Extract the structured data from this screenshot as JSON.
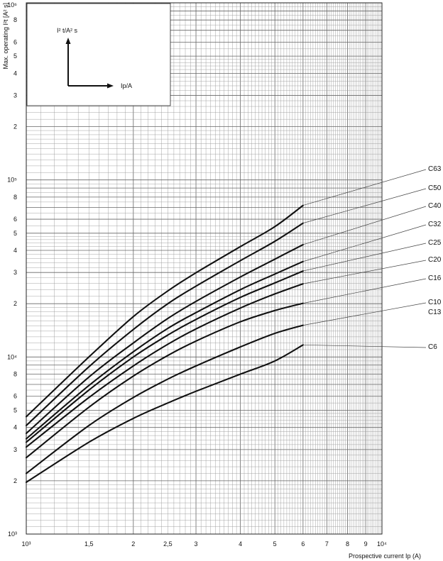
{
  "chart_data": {
    "type": "line",
    "title": "",
    "xlabel": "Prospective current Ip (A)",
    "ylabel": "Max. operating I²t [A² s]",
    "xscale": "log",
    "yscale": "log",
    "xlim": [
      1000,
      10000
    ],
    "ylim": [
      1000,
      1000000
    ],
    "grid": true,
    "x_tick_labels": [
      {
        "v": 1000,
        "t": "10³"
      },
      {
        "v": 1500,
        "t": "1,5"
      },
      {
        "v": 2000,
        "t": "2"
      },
      {
        "v": 2500,
        "t": "2,5"
      },
      {
        "v": 3000,
        "t": "3"
      },
      {
        "v": 4000,
        "t": "4"
      },
      {
        "v": 5000,
        "t": "5"
      },
      {
        "v": 6000,
        "t": "6"
      },
      {
        "v": 7000,
        "t": "7"
      },
      {
        "v": 8000,
        "t": "8"
      },
      {
        "v": 9000,
        "t": "9"
      },
      {
        "v": 10000,
        "t": "10⁴"
      }
    ],
    "y_tick_labels": [
      {
        "v": 1000,
        "t": "10³"
      },
      {
        "v": 2000,
        "t": "2"
      },
      {
        "v": 3000,
        "t": "3"
      },
      {
        "v": 4000,
        "t": "4"
      },
      {
        "v": 5000,
        "t": "5"
      },
      {
        "v": 6000,
        "t": "6"
      },
      {
        "v": 8000,
        "t": "8"
      },
      {
        "v": 10000,
        "t": "10⁴"
      },
      {
        "v": 20000,
        "t": "2"
      },
      {
        "v": 30000,
        "t": "3"
      },
      {
        "v": 40000,
        "t": "4"
      },
      {
        "v": 50000,
        "t": "5"
      },
      {
        "v": 60000,
        "t": "6"
      },
      {
        "v": 80000,
        "t": "8"
      },
      {
        "v": 100000,
        "t": "10⁵"
      },
      {
        "v": 200000,
        "t": "2"
      },
      {
        "v": 300000,
        "t": "3"
      },
      {
        "v": 400000,
        "t": "4"
      },
      {
        "v": 500000,
        "t": "5"
      },
      {
        "v": 600000,
        "t": "6"
      },
      {
        "v": 800000,
        "t": "8"
      },
      {
        "v": 1000000,
        "t": "10⁶"
      }
    ],
    "series": [
      {
        "name": "C63",
        "points": [
          [
            1000,
            4600
          ],
          [
            1500,
            10000
          ],
          [
            2000,
            16900
          ],
          [
            2500,
            23600
          ],
          [
            3000,
            29900
          ],
          [
            4000,
            42000
          ],
          [
            5000,
            54500
          ],
          [
            6000,
            71800
          ]
        ]
      },
      {
        "name": "C50",
        "points": [
          [
            1000,
            4100
          ],
          [
            1500,
            8800
          ],
          [
            2000,
            14300
          ],
          [
            2500,
            20000
          ],
          [
            3000,
            25100
          ],
          [
            4000,
            35000
          ],
          [
            5000,
            45000
          ],
          [
            6000,
            57000
          ]
        ]
      },
      {
        "name": "C40",
        "points": [
          [
            1000,
            3700
          ],
          [
            1500,
            7700
          ],
          [
            2000,
            12000
          ],
          [
            2500,
            16500
          ],
          [
            3000,
            20600
          ],
          [
            4000,
            28300
          ],
          [
            5000,
            35700
          ],
          [
            6000,
            43100
          ]
        ]
      },
      {
        "name": "C32",
        "points": [
          [
            1000,
            3450
          ],
          [
            1500,
            6900
          ],
          [
            2000,
            10700
          ],
          [
            2500,
            14500
          ],
          [
            3000,
            17800
          ],
          [
            4000,
            24000
          ],
          [
            5000,
            29400
          ],
          [
            6000,
            34600
          ]
        ]
      },
      {
        "name": "C25",
        "points": [
          [
            1000,
            3300
          ],
          [
            1500,
            6500
          ],
          [
            2000,
            10000
          ],
          [
            2500,
            13300
          ],
          [
            3000,
            16300
          ],
          [
            4000,
            21700
          ],
          [
            5000,
            26200
          ],
          [
            6000,
            30600
          ]
        ]
      },
      {
        "name": "C20",
        "points": [
          [
            1000,
            3100
          ],
          [
            1500,
            5900
          ],
          [
            2000,
            8900
          ],
          [
            2500,
            11800
          ],
          [
            3000,
            14400
          ],
          [
            4000,
            18900
          ],
          [
            5000,
            22700
          ],
          [
            6000,
            25900
          ]
        ]
      },
      {
        "name": "C16",
        "points": [
          [
            1000,
            2700
          ],
          [
            1500,
            5200
          ],
          [
            2000,
            7800
          ],
          [
            2500,
            10200
          ],
          [
            3000,
            12300
          ],
          [
            4000,
            15800
          ],
          [
            5000,
            18300
          ],
          [
            6000,
            20100
          ]
        ]
      },
      {
        "name": "C10 C13",
        "points": [
          [
            1000,
            2200
          ],
          [
            1500,
            4100
          ],
          [
            2000,
            5900
          ],
          [
            2500,
            7500
          ],
          [
            3000,
            8900
          ],
          [
            4000,
            11400
          ],
          [
            5000,
            13600
          ],
          [
            6000,
            15100
          ]
        ]
      },
      {
        "name": "C6",
        "points": [
          [
            1000,
            1960
          ],
          [
            1500,
            3300
          ],
          [
            2000,
            4500
          ],
          [
            2500,
            5500
          ],
          [
            3000,
            6400
          ],
          [
            4000,
            8000
          ],
          [
            5000,
            9500
          ],
          [
            6000,
            11700
          ]
        ]
      }
    ],
    "curve_labels": [
      {
        "series": 0,
        "lines": [
          "C63"
        ]
      },
      {
        "series": 1,
        "lines": [
          "C50"
        ]
      },
      {
        "series": 2,
        "lines": [
          "C40"
        ]
      },
      {
        "series": 3,
        "lines": [
          "C32"
        ]
      },
      {
        "series": 4,
        "lines": [
          "C25"
        ]
      },
      {
        "series": 5,
        "lines": [
          "C20"
        ]
      },
      {
        "series": 6,
        "lines": [
          "C16"
        ]
      },
      {
        "series": 7,
        "lines": [
          "C10",
          "C13"
        ]
      },
      {
        "series": 8,
        "lines": [
          "C6"
        ]
      }
    ]
  },
  "inset": {
    "y_label": "I² t/A² s",
    "x_label": "Ip/A"
  }
}
